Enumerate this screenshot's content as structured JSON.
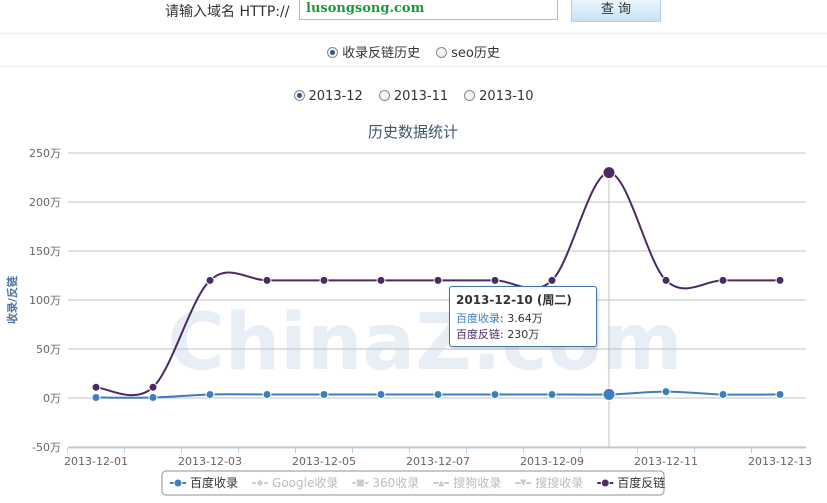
{
  "form": {
    "label": "请输入域名 HTTP://",
    "input": "lusongsong.com",
    "button": "查 询"
  },
  "tabs": [
    "收录反链历史",
    "seo历史"
  ],
  "tab_selected": 0,
  "months": [
    "2013-12",
    "2013-11",
    "2013-10"
  ],
  "month_selected": 0,
  "chart_data": {
    "type": "line",
    "title": "历史数据统计",
    "ylabel": "收录/反链",
    "watermark": "ChinaZ.com",
    "categories": [
      "2013-12-01",
      null,
      "2013-12-03",
      null,
      "2013-12-05",
      null,
      "2013-12-07",
      null,
      "2013-12-09",
      null,
      "2013-12-11",
      null,
      "2013-12-13"
    ],
    "ylim": [
      -50,
      250
    ],
    "yticks": [
      {
        "value": -50,
        "label": "-50万"
      },
      {
        "value": 0,
        "label": "0万"
      },
      {
        "value": 50,
        "label": "50万"
      },
      {
        "value": 100,
        "label": "100万"
      },
      {
        "value": 150,
        "label": "150万"
      },
      {
        "value": 200,
        "label": "200万"
      },
      {
        "value": 250,
        "label": "250万"
      }
    ],
    "grid": true,
    "smooth": true,
    "series": [
      {
        "name": "百度收录",
        "color": "#3d7ebf",
        "marker": "circle",
        "visible": true,
        "values": [
          0.5,
          0.5,
          3.6,
          3.6,
          3.6,
          3.6,
          3.6,
          3.6,
          3.6,
          3.64,
          6.5,
          3.6,
          3.6
        ]
      },
      {
        "name": "Google收录",
        "color": "#aaaaaa",
        "marker": "diamond",
        "visible": false,
        "values": [
          null,
          null,
          null,
          null,
          null,
          null,
          null,
          null,
          null,
          null,
          null,
          null,
          null
        ]
      },
      {
        "name": "360收录",
        "color": "#aaaaaa",
        "marker": "square",
        "visible": false,
        "values": [
          null,
          null,
          null,
          null,
          null,
          null,
          null,
          null,
          null,
          null,
          null,
          null,
          null
        ]
      },
      {
        "name": "搜狗收录",
        "color": "#aaaaaa",
        "marker": "triangle",
        "visible": false,
        "values": [
          null,
          null,
          null,
          null,
          null,
          null,
          null,
          null,
          null,
          null,
          null,
          null,
          null
        ]
      },
      {
        "name": "搜搜收录",
        "color": "#aaaaaa",
        "marker": "triangle-down",
        "visible": false,
        "values": [
          null,
          null,
          null,
          null,
          null,
          null,
          null,
          null,
          null,
          null,
          null,
          null,
          null
        ]
      },
      {
        "name": "百度反链",
        "color": "#4b2a63",
        "marker": "circle",
        "visible": true,
        "values": [
          11,
          11,
          120,
          120,
          120,
          120,
          120,
          120,
          120,
          230,
          120,
          120,
          120
        ]
      }
    ],
    "tooltip": {
      "index": 9,
      "title": "2013-12-10 (周二)",
      "rows": [
        {
          "name": "百度收录",
          "value": "3.64万"
        },
        {
          "name": "百度反链",
          "value": "230万"
        }
      ]
    }
  }
}
